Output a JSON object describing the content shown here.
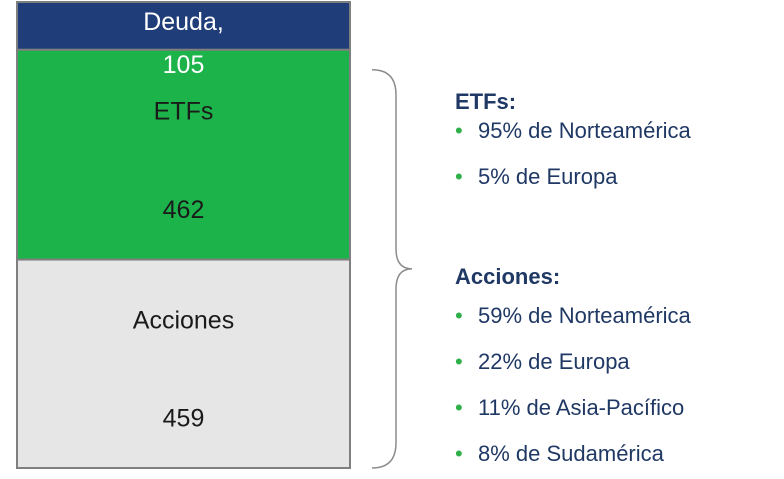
{
  "chart_data": {
    "type": "stacked_bar",
    "categories": [
      null
    ],
    "series": [
      {
        "name": "Acciones",
        "color": "#e6e6e6",
        "values": [
          459
        ]
      },
      {
        "name": "ETFs",
        "color": "#1db34b",
        "values": [
          462
        ]
      },
      {
        "name": "Deuda,",
        "color": "#1f3d78",
        "values": [
          105
        ]
      }
    ],
    "ylim": [
      0,
      1026
    ],
    "notes": [
      {
        "heading": "ETFs:",
        "items": [
          "95% de Norteamérica",
          "5% de Europa"
        ]
      },
      {
        "heading": "Acciones:",
        "items": [
          "59% de Norteamérica",
          "22% de Europa",
          "11% de Asia-Pacífico",
          "8% de Sudamérica"
        ]
      }
    ],
    "bullet_color": "#2fb04a"
  }
}
